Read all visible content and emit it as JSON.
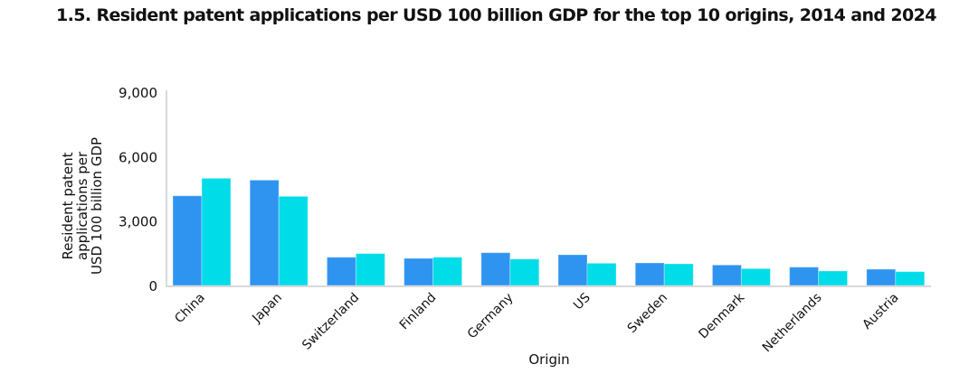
{
  "chart_data": {
    "type": "bar",
    "title": "1.5. Resident patent applications per USD 100 billion GDP for the top 10 origins, 2014 and 2024",
    "xlabel": "Origin",
    "ylabel_lines": [
      "Resident patent",
      "applications per",
      "USD 100 billion GDP"
    ],
    "ylabel": "Resident patent applications per USD 100 billion GDP",
    "ylim": [
      0,
      9000
    ],
    "yticks": [
      0,
      3000,
      6000,
      9000
    ],
    "ytick_labels": [
      "0",
      "3,000",
      "6,000",
      "9,000"
    ],
    "grid": false,
    "legend": "none",
    "categories": [
      "China",
      "Japan",
      "Switzerland",
      "Finland",
      "Germany",
      "US",
      "Sweden",
      "Denmark",
      "Netherlands",
      "Austria"
    ],
    "series": [
      {
        "name": "2014",
        "color": "#2f94f0",
        "values": [
          4175,
          4905,
          1316,
          1262,
          1527,
          1430,
          1051,
          954,
          855,
          757
        ]
      },
      {
        "name": "2024",
        "color": "#00dce8",
        "values": [
          4990,
          4150,
          1485,
          1316,
          1232,
          1037,
          1009,
          786,
          673,
          645
        ]
      }
    ],
    "axis_color": "#d9d9d9"
  }
}
